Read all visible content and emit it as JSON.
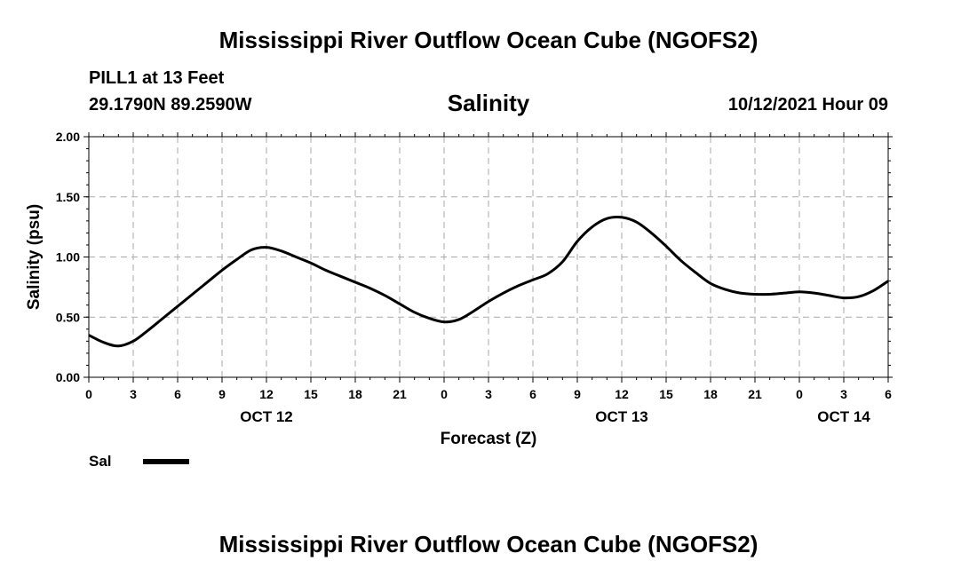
{
  "header": {
    "title": "Mississippi River Outflow Ocean Cube (NGOFS2)",
    "station": "PILL1 at 13 Feet",
    "coords": "29.1790N  89.2590W",
    "variable": "Salinity",
    "timestamp": "10/12/2021 Hour 09"
  },
  "footer": {
    "title": "Mississippi River Outflow Ocean Cube (NGOFS2)"
  },
  "legend": {
    "label": "Sal"
  },
  "colors": {
    "line": "#000000",
    "grid": "#aaaaaa",
    "background": "#ffffff"
  },
  "chart_data": {
    "type": "line",
    "title": "Salinity",
    "xlabel": "Forecast (Z)",
    "ylabel": "Salinity (psu)",
    "xlim": [
      0,
      54
    ],
    "ylim": [
      0,
      2
    ],
    "x_ticks": [
      0,
      3,
      6,
      9,
      12,
      15,
      18,
      21,
      24,
      27,
      30,
      33,
      36,
      39,
      42,
      45,
      48,
      51,
      54
    ],
    "x_tick_labels": [
      "0",
      "3",
      "6",
      "9",
      "12",
      "15",
      "18",
      "21",
      "0",
      "3",
      "6",
      "9",
      "12",
      "15",
      "18",
      "21",
      "0",
      "3",
      "6"
    ],
    "y_ticks": [
      0,
      0.5,
      1,
      1.5,
      2
    ],
    "y_tick_labels": [
      "0.00",
      "0.50",
      "1.00",
      "1.50",
      "2.00"
    ],
    "date_labels": [
      {
        "x": 12,
        "label": "OCT 12"
      },
      {
        "x": 36,
        "label": "OCT 13"
      },
      {
        "x": 51,
        "label": "OCT 14"
      }
    ],
    "grid": true,
    "series": [
      {
        "name": "Sal",
        "x": [
          0,
          1,
          2,
          3,
          4,
          5,
          6,
          7,
          8,
          9,
          10,
          11,
          12,
          13,
          14,
          15,
          16,
          17,
          18,
          19,
          20,
          21,
          22,
          23,
          24,
          25,
          26,
          27,
          28,
          29,
          30,
          31,
          32,
          33,
          34,
          35,
          36,
          37,
          38,
          39,
          40,
          41,
          42,
          43,
          44,
          45,
          46,
          47,
          48,
          49,
          50,
          51,
          52,
          53,
          54
        ],
        "values": [
          0.35,
          0.29,
          0.26,
          0.3,
          0.39,
          0.49,
          0.59,
          0.69,
          0.79,
          0.89,
          0.98,
          1.06,
          1.08,
          1.05,
          1.0,
          0.95,
          0.89,
          0.84,
          0.79,
          0.74,
          0.68,
          0.61,
          0.54,
          0.49,
          0.46,
          0.48,
          0.55,
          0.63,
          0.7,
          0.76,
          0.81,
          0.86,
          0.96,
          1.13,
          1.25,
          1.32,
          1.33,
          1.29,
          1.2,
          1.09,
          0.97,
          0.87,
          0.78,
          0.73,
          0.7,
          0.69,
          0.69,
          0.7,
          0.71,
          0.7,
          0.68,
          0.66,
          0.67,
          0.72,
          0.8
        ]
      }
    ]
  }
}
